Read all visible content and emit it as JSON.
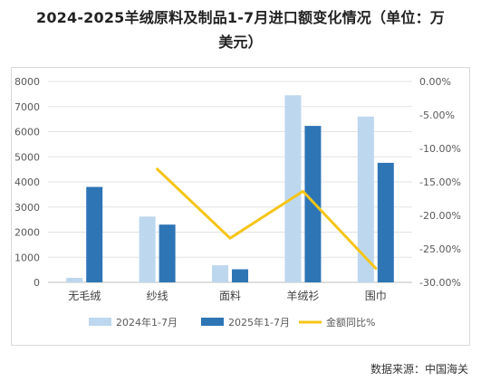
{
  "chart_title_line1": "2024-2025羊绒原料及制品1-7月进口额变化情况（单位：万",
  "chart_title_line2": "美元）",
  "source_note": "数据来源：中国海关",
  "chart_data": {
    "type": "bar",
    "title": "2024-2025羊绒原料及制品1-7月进口额变化情况（单位：万美元）",
    "categories": [
      "无毛绒",
      "纱线",
      "面料",
      "羊绒衫",
      "围巾"
    ],
    "y_left": {
      "min": 0,
      "max": 8000,
      "step": 1000,
      "ticks": [
        "0",
        "1000",
        "2000",
        "3000",
        "4000",
        "5000",
        "6000",
        "7000",
        "8000"
      ]
    },
    "y_right": {
      "min": -30,
      "max": 0,
      "step": 5,
      "ticks": [
        "0.00%",
        "-5.00%",
        "-10.00%",
        "-15.00%",
        "-20.00%",
        "-25.00%",
        "-30.00%"
      ]
    },
    "series": [
      {
        "name": "2024年1-7月",
        "type": "bar",
        "axis": "left",
        "color": "#bdd7ee",
        "values": [
          180,
          2620,
          680,
          7450,
          6600
        ]
      },
      {
        "name": "2025年1-7月",
        "type": "bar",
        "axis": "left",
        "color": "#2e75b6",
        "values": [
          3800,
          2300,
          520,
          6230,
          4760
        ]
      },
      {
        "name": "金额同比%",
        "type": "line",
        "axis": "right",
        "color": "#f5c518",
        "values": [
          null,
          -13.1,
          -23.4,
          -16.4,
          -27.9
        ]
      }
    ],
    "grid": true,
    "legend_position": "bottom"
  }
}
